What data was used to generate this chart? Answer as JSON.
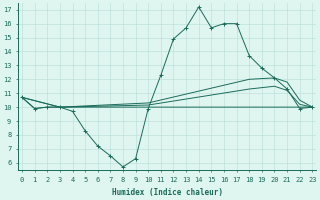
{
  "line1_x": [
    0,
    1,
    2,
    3,
    4,
    5,
    6,
    7,
    8,
    9,
    10,
    11,
    12,
    13,
    14,
    15,
    16,
    17,
    18,
    19,
    20,
    21,
    22,
    23
  ],
  "line1_y": [
    10.7,
    9.9,
    10.0,
    10.0,
    9.7,
    8.3,
    7.2,
    6.5,
    5.7,
    6.3,
    9.9,
    12.3,
    14.9,
    15.7,
    17.2,
    15.7,
    16.0,
    16.0,
    13.7,
    12.8,
    12.1,
    11.3,
    9.9,
    10.0
  ],
  "line2_x": [
    0,
    1,
    2,
    3,
    10,
    22,
    23
  ],
  "line2_y": [
    10.7,
    9.9,
    10.0,
    10.0,
    10.0,
    10.0,
    10.0
  ],
  "line3_x": [
    0,
    3,
    10,
    18,
    20,
    21,
    22,
    23
  ],
  "line3_y": [
    10.7,
    10.0,
    10.3,
    12.0,
    12.1,
    11.8,
    10.5,
    10.0
  ],
  "line4_x": [
    0,
    3,
    10,
    18,
    20,
    21,
    22,
    23
  ],
  "line4_y": [
    10.7,
    10.0,
    10.15,
    11.3,
    11.5,
    11.2,
    10.2,
    10.0
  ],
  "color": "#1a6b5a",
  "bg_color": "#dff5f0",
  "grid_color": "#b8ddd8",
  "xlabel": "Humidex (Indice chaleur)",
  "yticks": [
    6,
    7,
    8,
    9,
    10,
    11,
    12,
    13,
    14,
    15,
    16,
    17
  ],
  "xticks": [
    0,
    1,
    2,
    3,
    4,
    5,
    6,
    7,
    8,
    9,
    10,
    11,
    12,
    13,
    14,
    15,
    16,
    17,
    18,
    19,
    20,
    21,
    22,
    23
  ],
  "xlim": [
    -0.3,
    23.3
  ],
  "ylim": [
    5.5,
    17.5
  ],
  "axis_fontsize": 5.5,
  "tick_fontsize": 5.0
}
